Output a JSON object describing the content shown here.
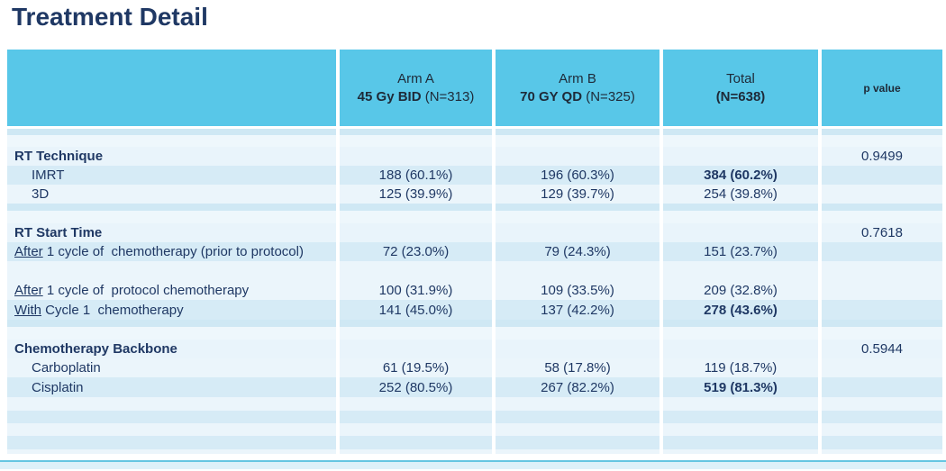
{
  "title": "Treatment Detail",
  "colors": {
    "accent_cyan": "#58C7E8",
    "title_navy": "#1F3864",
    "body_text_navy": "#1F3864",
    "row_shade_dark": "#D6EBF6",
    "row_shade_light": "#EBF5FB",
    "bottom_bar": "#DEF1F9"
  },
  "table": {
    "header": {
      "arm_a_line1": "Arm A",
      "arm_a_bold": "45 Gy BID",
      "arm_a_normal": " (N=313)",
      "arm_b_line1": "Arm B",
      "arm_b_bold": "70 GY QD",
      "arm_b_normal": " (N=325)",
      "total_line1": "Total",
      "total_bold": "(N=638)",
      "p_label": "p value"
    },
    "sections": [
      {
        "name": "RT Technique",
        "p_value": "0.9499",
        "rows": [
          {
            "label": "IMRT",
            "arm_a": "188 (60.1%)",
            "arm_b": "196 (60.3%)",
            "total": "384 (60.2%)"
          },
          {
            "label": "3D",
            "arm_a": "125 (39.9%)",
            "arm_b": "129 (39.7%)",
            "total": "254 (39.8%)"
          }
        ]
      },
      {
        "name": "RT Start Time",
        "p_value": "0.7618",
        "rows": [
          {
            "label_u": "After",
            "label_rest": " 1 cycle of  chemotherapy (prior to protocol)",
            "arm_a": "72 (23.0%)",
            "arm_b": "79 (24.3%)",
            "total": "151 (23.7%)"
          },
          {
            "label_u": "After",
            "label_rest": " 1 cycle of  protocol chemotherapy",
            "arm_a": "100 (31.9%)",
            "arm_b": "109 (33.5%)",
            "total": "209 (32.8%)"
          },
          {
            "label_u": "With",
            "label_rest": " Cycle 1  chemotherapy",
            "arm_a": "141 (45.0%)",
            "arm_b": "137 (42.2%)",
            "total": "278 (43.6%)"
          }
        ]
      },
      {
        "name": "Chemotherapy Backbone",
        "p_value": "0.5944",
        "rows": [
          {
            "label": "Carboplatin",
            "arm_a": "61 (19.5%)",
            "arm_b": "58 (17.8%)",
            "total": "119 (18.7%)"
          },
          {
            "label": "Cisplatin",
            "arm_a": "252 (80.5%)",
            "arm_b": "267 (82.2%)",
            "total": "519 (81.3%)"
          }
        ]
      }
    ]
  }
}
